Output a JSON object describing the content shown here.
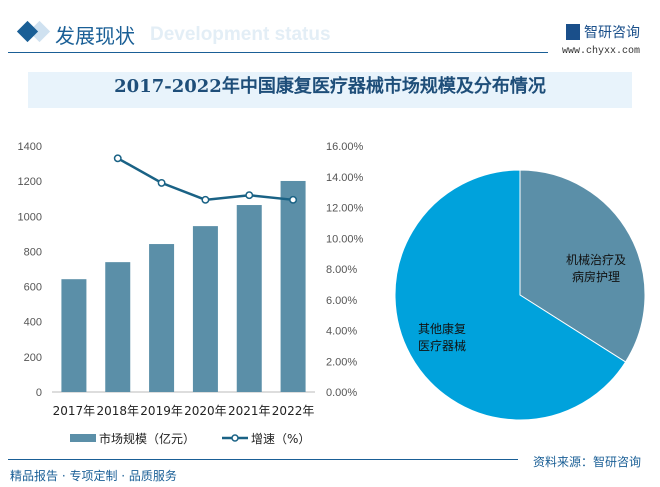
{
  "header": {
    "section_title": "发展现状",
    "watermark_text": "Development status",
    "logo_name": "智研咨询",
    "logo_url": "www.chyxx.com"
  },
  "chart_data": [
    {
      "type": "bar+line",
      "title": "2017-2022年中国康复医疗器械市场规模及分布情况",
      "categories": [
        "2017年",
        "2018年",
        "2019年",
        "2020年",
        "2021年",
        "2022年"
      ],
      "series": [
        {
          "name": "市场规模（亿元）",
          "type": "bar",
          "axis": "left",
          "color": "#5b8fa8",
          "values": [
            642,
            739,
            842,
            944,
            1064,
            1201
          ]
        },
        {
          "name": "增速（%）",
          "type": "line",
          "axis": "right",
          "color": "#1a6285",
          "values": [
            null,
            15.2,
            13.6,
            12.5,
            12.8,
            12.5
          ]
        }
      ],
      "yleft": {
        "range": [
          0,
          1400
        ],
        "ticks": [
          "0",
          "200",
          "400",
          "600",
          "800",
          "1000",
          "1200",
          "1400"
        ]
      },
      "yright": {
        "range": [
          0,
          16
        ],
        "ticks": [
          "0.00%",
          "2.00%",
          "4.00%",
          "6.00%",
          "8.00%",
          "10.00%",
          "12.00%",
          "14.00%",
          "16.00%"
        ]
      },
      "legend": "bottom",
      "grid": false
    },
    {
      "type": "pie",
      "slices": [
        {
          "label": "机械治疗及病房护理",
          "label_lines": [
            "机械治疗及",
            "病房护理"
          ],
          "value": 34,
          "color": "#5b8fa8"
        },
        {
          "label": "其他康复医疗器械",
          "label_lines": [
            "其他康复",
            "医疗器械"
          ],
          "value": 66,
          "color": "#00a2dc"
        }
      ]
    }
  ],
  "footer": {
    "slogan": "精品报告 · 专项定制 · 品质服务",
    "source": "资料来源：智研咨询"
  }
}
